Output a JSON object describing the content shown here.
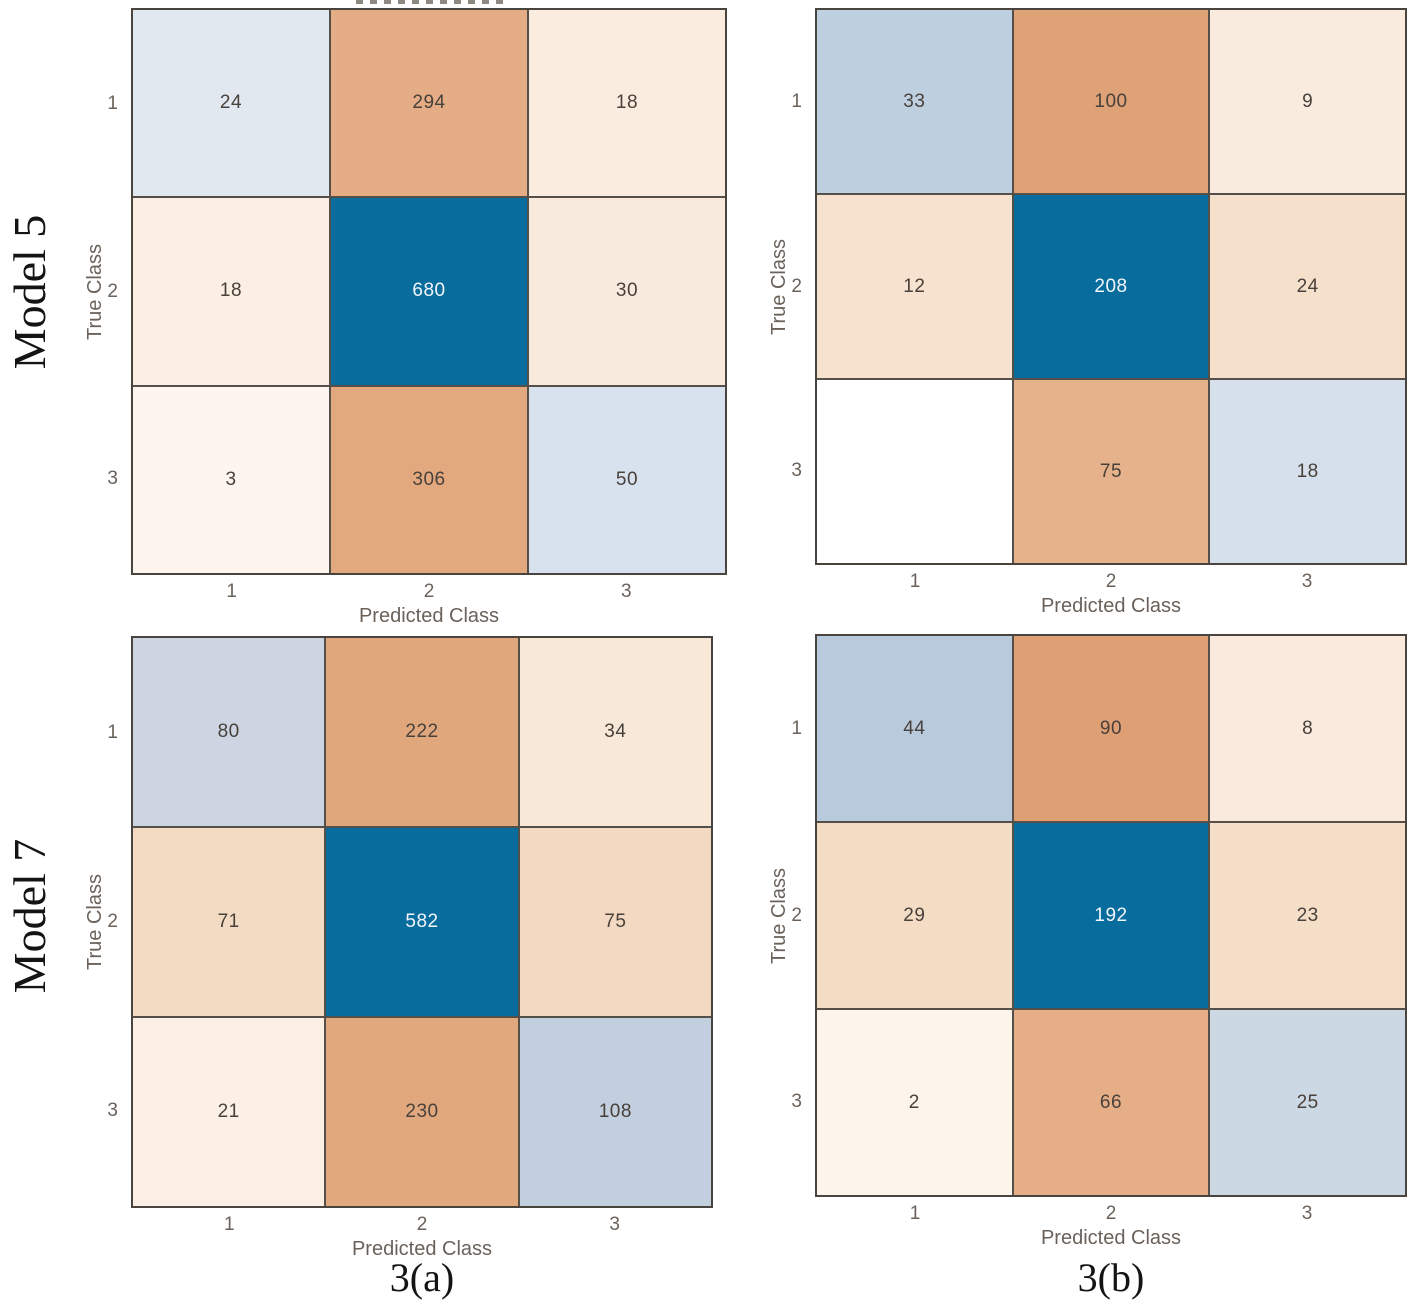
{
  "figure": {
    "row_labels": [
      "Model 5",
      "Model 7"
    ],
    "captions": [
      "3(a)",
      "3(b)"
    ]
  },
  "shared": {
    "x_axis_label": "Predicted Class",
    "y_axis_label": "True Class",
    "x_ticks": [
      "1",
      "2",
      "3"
    ],
    "y_ticks": [
      "1",
      "2",
      "3"
    ]
  },
  "palette": {
    "diagonal_strong_blue": "#086c9d",
    "grid_line": "#554f49",
    "cell_text_dark": "#48413b",
    "cell_text_light": "#f3f6fa",
    "axis_text": "#6a625a",
    "figure_text": "#141414",
    "background": "#ffffff"
  },
  "chart_data": [
    {
      "type": "heatmap",
      "panel": "top-left",
      "model_row_label": "Model 5",
      "column_caption": "3(a)",
      "xlabel": "Predicted Class",
      "ylabel": "True Class",
      "x_categories": [
        "1",
        "2",
        "3"
      ],
      "y_categories": [
        "1",
        "2",
        "3"
      ],
      "values": [
        [
          24,
          294,
          18
        ],
        [
          18,
          680,
          30
        ],
        [
          3,
          306,
          50
        ]
      ],
      "value_labels": [
        [
          "24",
          "294",
          "18"
        ],
        [
          "18",
          "680",
          "30"
        ],
        [
          "3",
          "306",
          "50"
        ]
      ],
      "cell_colors": [
        [
          "#e2e8f0",
          "#e4ad85",
          "#faeddf"
        ],
        [
          "#fbeee2",
          "#086c9d",
          "#f9eade"
        ],
        [
          "#fdf5ee",
          "#e2a87e",
          "#d8e1ee"
        ]
      ],
      "cell_text": [
        [
          "dark",
          "dark",
          "dark"
        ],
        [
          "dark",
          "light",
          "dark"
        ],
        [
          "dark",
          "dark",
          "dark"
        ]
      ]
    },
    {
      "type": "heatmap",
      "panel": "top-right",
      "model_row_label": "Model 5",
      "column_caption": "3(b)",
      "xlabel": "Predicted Class",
      "ylabel": "True Class",
      "x_categories": [
        "1",
        "2",
        "3"
      ],
      "y_categories": [
        "1",
        "2",
        "3"
      ],
      "values": [
        [
          33,
          100,
          9
        ],
        [
          12,
          208,
          24
        ],
        [
          null,
          75,
          18
        ]
      ],
      "value_labels": [
        [
          "33",
          "100",
          "9"
        ],
        [
          "12",
          "208",
          "24"
        ],
        [
          "",
          "75",
          "18"
        ]
      ],
      "cell_colors": [
        [
          "#becfe0",
          "#dfa176",
          "#f9ebde"
        ],
        [
          "#f6e2cf",
          "#086c9d",
          "#f5e0cb"
        ],
        [
          "#ffffff",
          "#e5b28b",
          "#d6e0ec"
        ]
      ],
      "cell_text": [
        [
          "dark",
          "dark",
          "dark"
        ],
        [
          "dark",
          "light",
          "dark"
        ],
        [
          "dark",
          "dark",
          "dark"
        ]
      ]
    },
    {
      "type": "heatmap",
      "panel": "bottom-left",
      "model_row_label": "Model 7",
      "column_caption": "3(a)",
      "xlabel": "Predicted Class",
      "ylabel": "True Class",
      "x_categories": [
        "1",
        "2",
        "3"
      ],
      "y_categories": [
        "1",
        "2",
        "3"
      ],
      "values": [
        [
          80,
          222,
          34
        ],
        [
          71,
          582,
          75
        ],
        [
          21,
          230,
          108
        ]
      ],
      "value_labels": [
        [
          "80",
          "222",
          "34"
        ],
        [
          "71",
          "582",
          "75"
        ],
        [
          "21",
          "230",
          "108"
        ]
      ],
      "cell_colors": [
        [
          "#ccd5e1",
          "#e0a77d",
          "#f8e8d8"
        ],
        [
          "#f3dac2",
          "#086c9d",
          "#f3d9c1"
        ],
        [
          "#fcf0e6",
          "#e1a87e",
          "#c2cfdf"
        ]
      ],
      "cell_text": [
        [
          "dark",
          "dark",
          "dark"
        ],
        [
          "dark",
          "light",
          "dark"
        ],
        [
          "dark",
          "dark",
          "dark"
        ]
      ]
    },
    {
      "type": "heatmap",
      "panel": "bottom-right",
      "model_row_label": "Model 7",
      "column_caption": "3(b)",
      "xlabel": "Predicted Class",
      "ylabel": "True Class",
      "x_categories": [
        "1",
        "2",
        "3"
      ],
      "y_categories": [
        "1",
        "2",
        "3"
      ],
      "values": [
        [
          44,
          90,
          8
        ],
        [
          29,
          192,
          23
        ],
        [
          2,
          66,
          25
        ]
      ],
      "value_labels": [
        [
          "44",
          "90",
          "8"
        ],
        [
          "29",
          "192",
          "23"
        ],
        [
          "2",
          "66",
          "25"
        ]
      ],
      "cell_colors": [
        [
          "#b9cadd",
          "#df9f74",
          "#faeade"
        ],
        [
          "#f4dcc5",
          "#086c9d",
          "#f5dec8"
        ],
        [
          "#fdf4ec",
          "#e5ae86",
          "#ccd8e4"
        ]
      ],
      "cell_text": [
        [
          "dark",
          "dark",
          "dark"
        ],
        [
          "dark",
          "light",
          "dark"
        ],
        [
          "dark",
          "dark",
          "dark"
        ]
      ]
    }
  ]
}
